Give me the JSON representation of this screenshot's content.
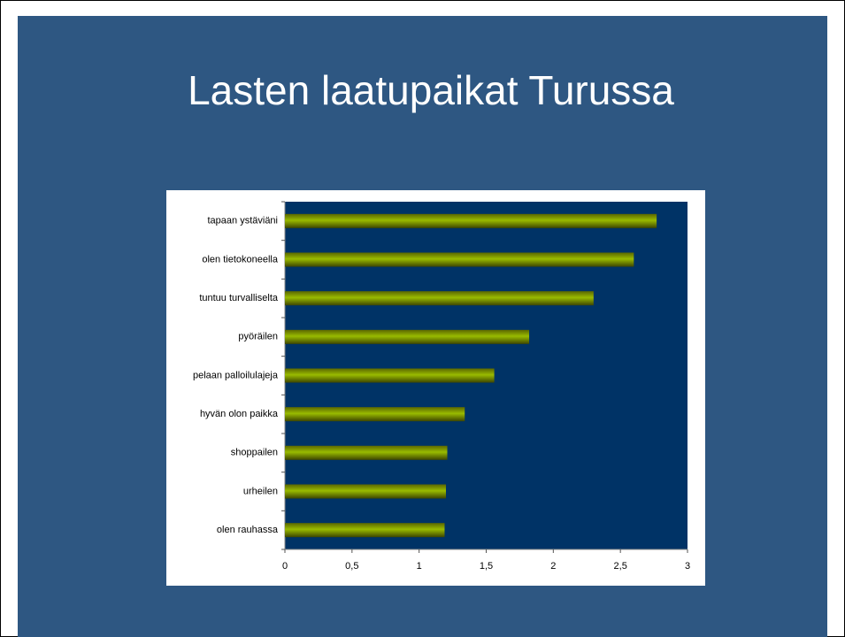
{
  "chart_data": {
    "type": "barh",
    "title": "Lasten laatupaikat Turussa",
    "categories": [
      "tapaan ystäviäni",
      "olen tietokoneella",
      "tuntuu turvalliselta",
      "pyöräilen",
      "pelaan palloilulajeja",
      "hyvän olon paikka",
      "shoppailen",
      "urheilen",
      "olen rauhassa"
    ],
    "values": [
      2.77,
      2.6,
      2.3,
      1.82,
      1.56,
      1.34,
      1.21,
      1.2,
      1.19
    ],
    "color": "#99bb00",
    "xlim": [
      0,
      3
    ],
    "xticks": [
      0,
      {
        "value": 0.5,
        "label": "0,5"
      },
      1,
      {
        "value": 1.5,
        "label": "1,5"
      },
      2,
      {
        "value": 2.5,
        "label": "2,5"
      },
      3
    ],
    "grid": false
  }
}
